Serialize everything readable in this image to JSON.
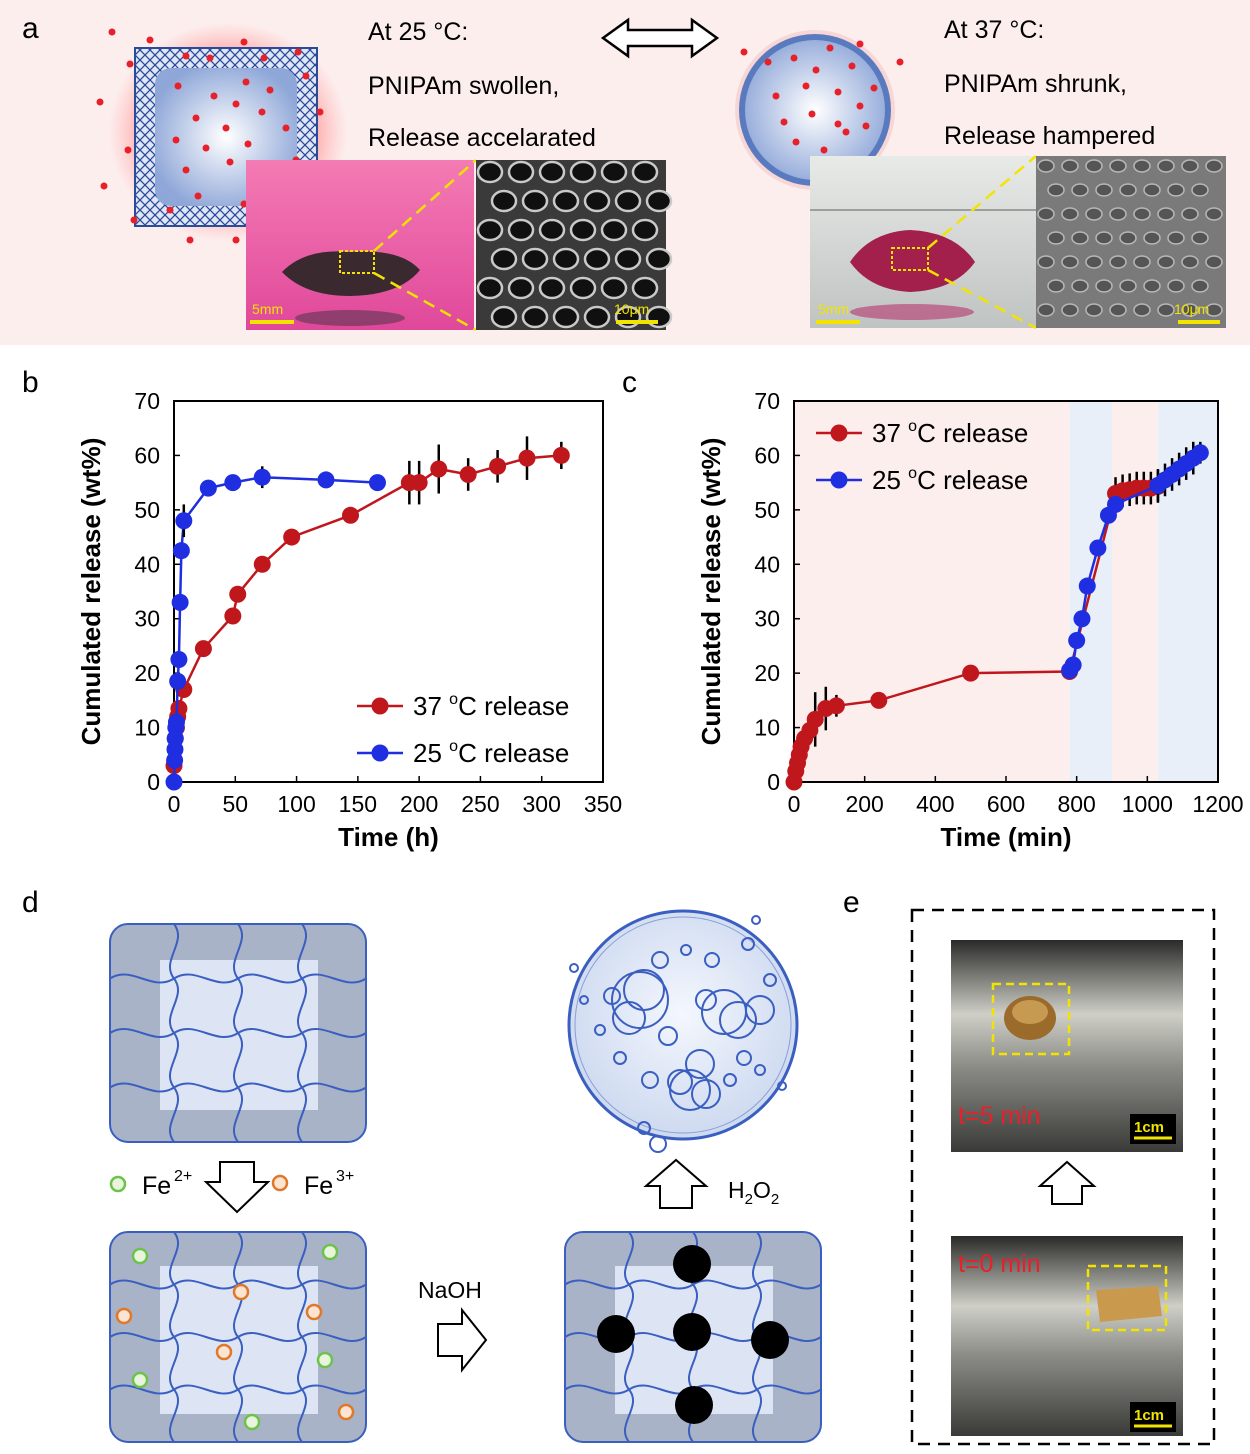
{
  "panel_labels": {
    "a": "a",
    "b": "b",
    "c": "c",
    "d": "d",
    "e": "e"
  },
  "panel_a": {
    "left_caption": [
      "At 25 °C:",
      "PNIPAm swollen,",
      "Release accelarated"
    ],
    "right_caption": [
      "At 37 °C:",
      "PNIPAm shrunk,",
      "Release hampered"
    ],
    "scale_photo_left": "5mm",
    "scale_sem_left": "10μm",
    "scale_photo_right": "5mm",
    "scale_sem_right": "10μm",
    "colors": {
      "background": "#fdeeee",
      "drug_dots": "#e8202a",
      "polymer": "#2a4a9a",
      "scale_bar": "#f2e400",
      "zoom_lines": "#f2e400"
    }
  },
  "panel_d": {
    "fe2_label": "Fe",
    "fe2_sup": "2+",
    "fe3_label": "Fe",
    "fe3_sup": "3+",
    "naoh_label": "NaOH",
    "h2o2_label": "H",
    "h2o2_sub": "2",
    "h2o2_o": "O",
    "h2o2_sub2": "2",
    "colors": {
      "gel_outer": "#a9b3c7",
      "gel_inner": "#dde5f5",
      "network": "#3a5fc0",
      "fe2": "#6cc24a",
      "fe3": "#e0782a",
      "particles": "#000000"
    }
  },
  "panel_e": {
    "top_time": "t=5 min",
    "bottom_time": "t=0 min",
    "scale_top": "1cm",
    "scale_bottom": "1cm"
  },
  "chart_data": [
    {
      "panel": "b",
      "type": "scatter",
      "xlabel": "Time (h)",
      "ylabel": "Cumulated release (wt%)",
      "xlim": [
        0,
        350
      ],
      "ylim": [
        0,
        70
      ],
      "xticks": [
        0,
        50,
        100,
        150,
        200,
        250,
        300,
        350
      ],
      "yticks": [
        0,
        10,
        20,
        30,
        40,
        50,
        60,
        70
      ],
      "legend_position": "bottom-right",
      "series": [
        {
          "name": "37 oC release",
          "legend_main": "37 ",
          "legend_sup": "o",
          "legend_rest": "C release",
          "color": "#c0171d",
          "x": [
            0,
            1,
            2,
            3,
            4,
            8,
            24,
            48,
            52,
            72,
            96,
            144,
            192,
            200,
            216,
            240,
            264,
            288,
            316
          ],
          "y": [
            3,
            8,
            10,
            12,
            13.5,
            17,
            24.5,
            30.5,
            34.5,
            40,
            45,
            49,
            55,
            55,
            57.5,
            56.5,
            58,
            59.5,
            60
          ],
          "err": [
            0,
            0,
            0,
            0,
            0,
            0,
            0,
            0,
            0,
            0,
            0,
            0,
            4,
            4,
            4.5,
            3,
            3,
            4,
            2.5
          ]
        },
        {
          "name": "25 oC release",
          "legend_main": "25 ",
          "legend_sup": "o",
          "legend_rest": "C release",
          "color": "#1e2ee0",
          "x": [
            0,
            0.5,
            0.8,
            1,
            1.5,
            2,
            3,
            4,
            5,
            6,
            8,
            28,
            48,
            72,
            124,
            166
          ],
          "y": [
            0,
            4,
            6,
            8,
            10,
            11,
            18.5,
            22.5,
            33,
            42.5,
            48,
            54,
            55,
            56,
            55.5,
            55
          ],
          "err": [
            0,
            0,
            0,
            0,
            0,
            0,
            0,
            0,
            0,
            0,
            3,
            1,
            1,
            2,
            1,
            0.5
          ]
        }
      ]
    },
    {
      "panel": "c",
      "type": "scatter",
      "xlabel": "Time (min)",
      "ylabel": "Cumulated release (wt%)",
      "xlim": [
        0,
        1200
      ],
      "ylim": [
        0,
        70
      ],
      "xticks": [
        0,
        200,
        400,
        600,
        800,
        1000,
        1200
      ],
      "yticks": [
        0,
        10,
        20,
        30,
        40,
        50,
        60,
        70
      ],
      "legend_position": "top-left",
      "background_bands": [
        {
          "from": 0,
          "to": 780,
          "condition": "37 °C",
          "color": "#fdeeee"
        },
        {
          "from": 780,
          "to": 900,
          "condition": "25 °C",
          "color": "#e9eff9"
        },
        {
          "from": 900,
          "to": 1030,
          "condition": "37 °C",
          "color": "#fdeeee"
        },
        {
          "from": 1030,
          "to": 1200,
          "condition": "25 °C",
          "color": "#e9eff9"
        }
      ],
      "series": [
        {
          "name": "37 oC release",
          "legend_main": "37 ",
          "legend_sup": "o",
          "legend_rest": "C release",
          "color": "#c0171d",
          "x": [
            0,
            5,
            10,
            15,
            20,
            30,
            45,
            60,
            90,
            120,
            240,
            500,
            780,
            910,
            930,
            950,
            970,
            990,
            1010,
            1030
          ],
          "y": [
            0,
            2,
            3.5,
            5,
            6.5,
            8,
            9.5,
            11.5,
            13.5,
            14,
            15,
            20,
            20.3,
            53,
            53.5,
            53.7,
            54,
            54,
            54,
            54.3
          ],
          "err": [
            0,
            0,
            0,
            0,
            0,
            0,
            0,
            5,
            4,
            2,
            0,
            0,
            0,
            3,
            3,
            3,
            3,
            3,
            3,
            3
          ]
        },
        {
          "name": "25 oC release",
          "legend_main": "25 ",
          "legend_sup": "o",
          "legend_rest": "C release",
          "color": "#1e2ee0",
          "x": [
            780,
            790,
            800,
            815,
            830,
            860,
            890,
            910,
            1030,
            1050,
            1070,
            1090,
            1110,
            1130,
            1150
          ],
          "y": [
            20.5,
            21.5,
            26,
            30,
            36,
            43,
            49,
            51,
            54.5,
            55.5,
            56.5,
            57.5,
            58.5,
            59.5,
            60.5
          ],
          "err": [
            0,
            0,
            0,
            0,
            0,
            0,
            0,
            1,
            3,
            3,
            3,
            3,
            3,
            3,
            2
          ]
        }
      ]
    }
  ]
}
